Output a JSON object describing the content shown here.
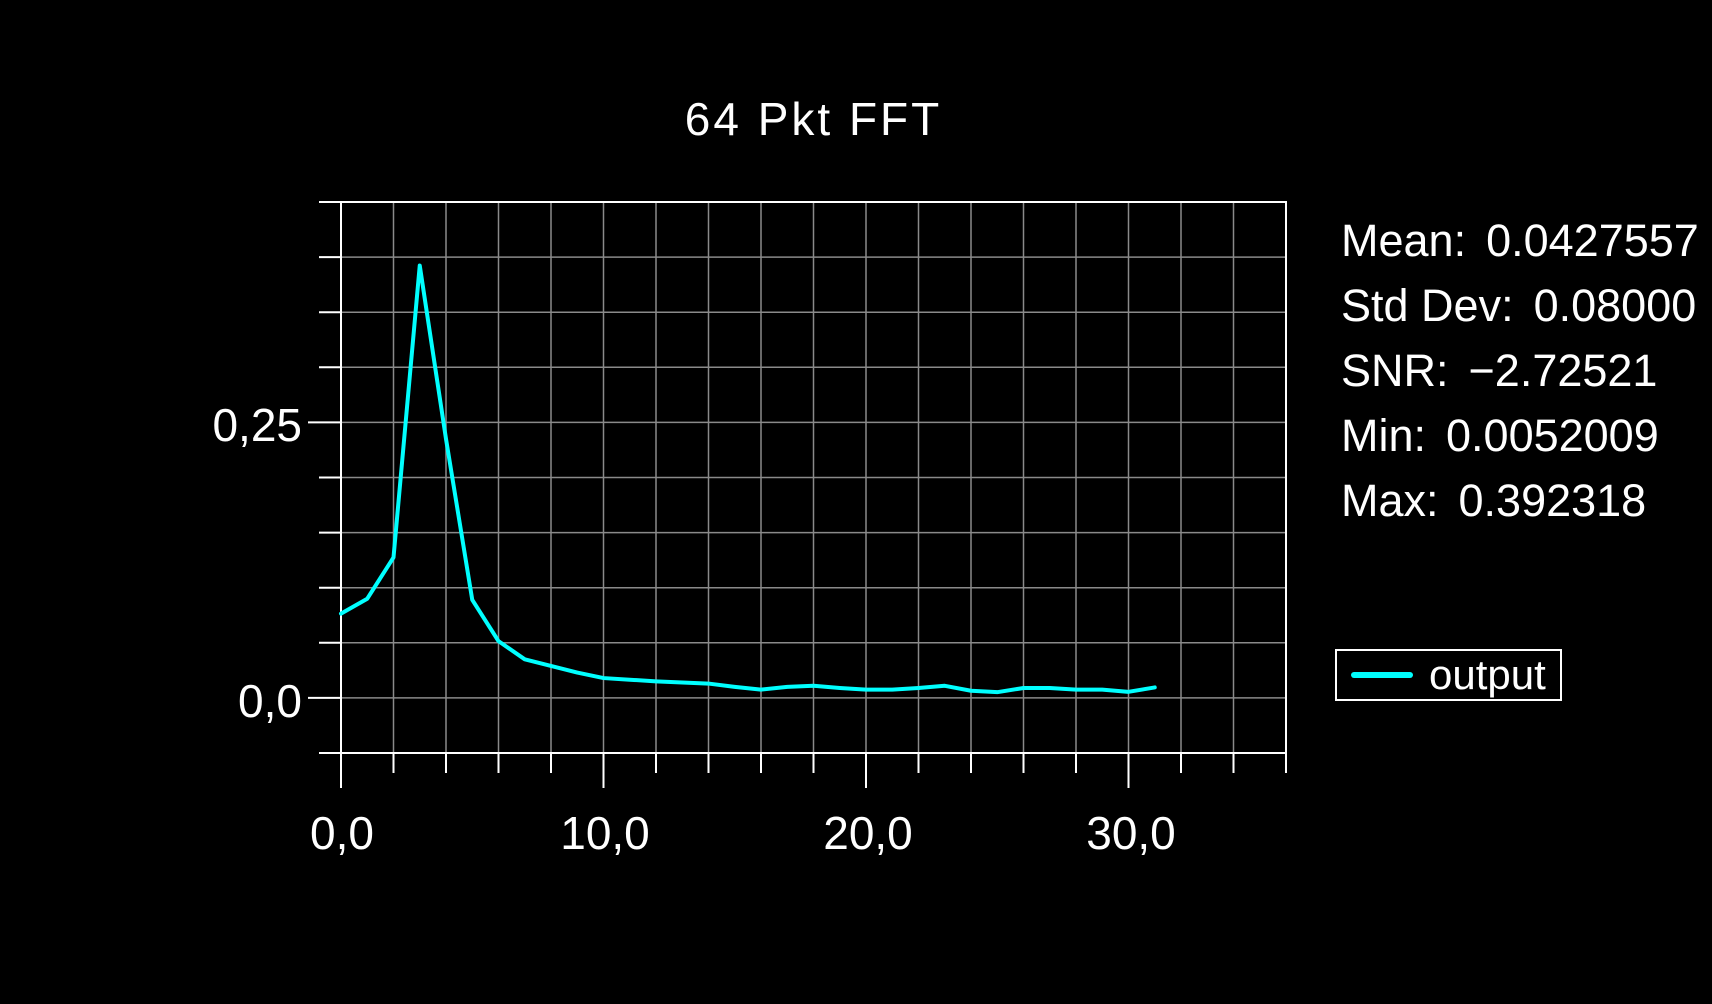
{
  "title": "64 Pkt FFT",
  "colors": {
    "background": "#000000",
    "axis": "#ffffff",
    "grid": "#8a8a8a",
    "series": "#00ffff",
    "text": "#ffffff"
  },
  "axes": {
    "x_tick_labels": [
      "0,0",
      "10,0",
      "20,0",
      "30,0"
    ],
    "y_tick_labels": [
      "0,25",
      "0,0"
    ]
  },
  "stats": {
    "lines": [
      {
        "label": "Mean:",
        "value": "0.0427557"
      },
      {
        "label": "Std Dev:",
        "value": "0.08000"
      },
      {
        "label": "SNR:",
        "value": "−2.72521"
      },
      {
        "label": "Min:",
        "value": "0.0052009"
      },
      {
        "label": "Max:",
        "value": "0.392318"
      }
    ]
  },
  "legend": {
    "items": [
      {
        "label": "output",
        "color": "#00ffff"
      }
    ]
  },
  "chart_data": {
    "type": "line",
    "title": "64 Pkt FFT",
    "xlabel": "",
    "ylabel": "",
    "xlim": [
      0,
      36
    ],
    "ylim": [
      -0.05,
      0.45
    ],
    "x_grid_step": 2,
    "y_grid_step": 0.05,
    "x_major_ticks": [
      0,
      10,
      20,
      30
    ],
    "y_major_ticks": [
      0,
      0.25
    ],
    "grid": true,
    "legend_position": "right",
    "x": [
      0,
      1,
      2,
      3,
      4,
      5,
      6,
      7,
      8,
      9,
      10,
      11,
      12,
      13,
      14,
      15,
      16,
      17,
      18,
      19,
      20,
      21,
      22,
      23,
      24,
      25,
      26,
      27,
      28,
      29,
      30,
      31
    ],
    "series": [
      {
        "name": "output",
        "color": "#00ffff",
        "values": [
          0.0765,
          0.09,
          0.1275,
          0.392318,
          0.235,
          0.089,
          0.0515,
          0.035,
          0.029,
          0.023,
          0.018,
          0.0165,
          0.015,
          0.014,
          0.013,
          0.01,
          0.0075,
          0.01,
          0.011,
          0.009,
          0.0075,
          0.0075,
          0.009,
          0.011,
          0.0065,
          0.0052009,
          0.009,
          0.009,
          0.0075,
          0.0075,
          0.0055,
          0.0095
        ]
      }
    ],
    "stats": {
      "mean": 0.0427557,
      "std_dev": 0.08,
      "snr": -2.72521,
      "min": 0.0052009,
      "max": 0.392318
    }
  }
}
